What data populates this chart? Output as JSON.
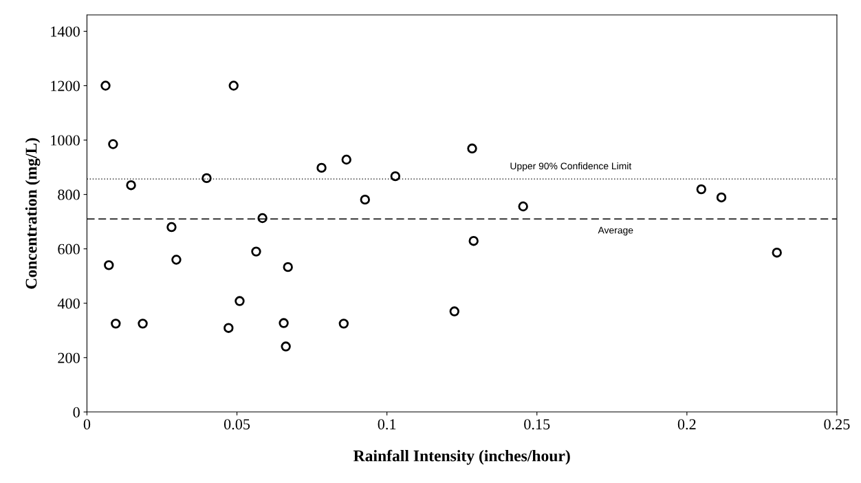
{
  "chart_data": {
    "type": "scatter",
    "xlabel": "Rainfall Intensity (inches/hour)",
    "ylabel": "Concentration (mg/L)",
    "x": [
      0.0062,
      0.0087,
      0.0073,
      0.0096,
      0.0147,
      0.0186,
      0.0282,
      0.0298,
      0.0399,
      0.0489,
      0.0472,
      0.0509,
      0.0564,
      0.0585,
      0.0656,
      0.0663,
      0.067,
      0.0782,
      0.0865,
      0.0856,
      0.0927,
      0.1028,
      0.1225,
      0.1284,
      0.1289,
      0.1454,
      0.2048,
      0.2115,
      0.23
    ],
    "series": [
      {
        "color": "#000000",
        "values": [
          1200,
          985,
          540,
          325,
          834,
          325,
          680,
          560,
          860,
          1200,
          309,
          408,
          590,
          713,
          327,
          241,
          533,
          898,
          928,
          325,
          781,
          867,
          370,
          969,
          629,
          756,
          819,
          789,
          586
        ]
      }
    ],
    "marker": "circle",
    "grid": false,
    "xlim": [
      0,
      0.25
    ],
    "xticks": [
      0,
      0.05,
      0.1,
      0.15,
      0.2,
      0.25
    ],
    "ylim": [
      0,
      1460
    ],
    "yticks": [
      0,
      200,
      400,
      600,
      800,
      1000,
      1200,
      1400
    ],
    "ref_lines": [
      {
        "axis": "y",
        "value": 857,
        "label": "Upper 90% Confidence Limit",
        "line_style": "dotted",
        "color": "#000000"
      },
      {
        "axis": "y",
        "value": 710,
        "label": "Average",
        "line_style": "dashed",
        "color": "#000000"
      }
    ]
  }
}
